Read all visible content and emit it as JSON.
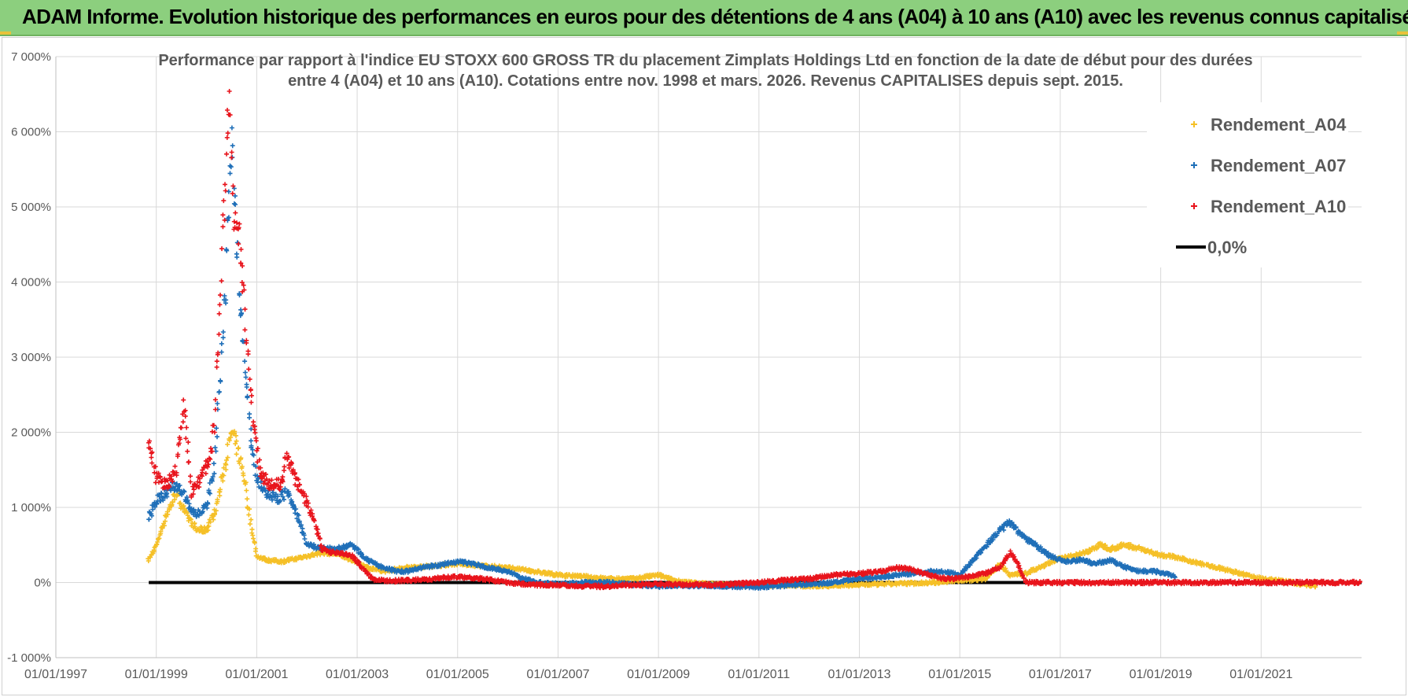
{
  "banner": {
    "title": "ADAM Informe. Evolution historique des performances en euros pour des détentions de 4 ans (A04) à 10 ans (A10) avec les revenus connus capitalisés"
  },
  "chart_data": {
    "type": "scatter",
    "title": "Performance par rapport à l'indice EU STOXX 600 GROSS TR  du placement Zimplats Holdings Ltd en fonction de la date de début pour des durées",
    "subtitle": "entre 4 (A04) et 10 ans (A10). Cotations entre nov. 1998 et mars. 2026. Revenus CAPITALISES depuis sept. 2015.",
    "xlabel": "",
    "ylabel": "",
    "xlim": [
      1997.0,
      2023.0
    ],
    "ylim": [
      -1000,
      7000
    ],
    "grid": true,
    "legend_position": "top-right",
    "x_ticks": [
      {
        "v": 1997,
        "label": "01/01/1997"
      },
      {
        "v": 1999,
        "label": "01/01/1999"
      },
      {
        "v": 2001,
        "label": "01/01/2001"
      },
      {
        "v": 2003,
        "label": "01/01/2003"
      },
      {
        "v": 2005,
        "label": "01/01/2005"
      },
      {
        "v": 2007,
        "label": "01/01/2007"
      },
      {
        "v": 2009,
        "label": "01/01/2009"
      },
      {
        "v": 2011,
        "label": "01/01/2011"
      },
      {
        "v": 2013,
        "label": "01/01/2013"
      },
      {
        "v": 2015,
        "label": "01/01/2015"
      },
      {
        "v": 2017,
        "label": "01/01/2017"
      },
      {
        "v": 2019,
        "label": "01/01/2019"
      },
      {
        "v": 2021,
        "label": "01/01/2021"
      }
    ],
    "y_ticks": [
      {
        "v": 7000,
        "label": "7 000%"
      },
      {
        "v": 6000,
        "label": "6 000%"
      },
      {
        "v": 5000,
        "label": "5 000%"
      },
      {
        "v": 4000,
        "label": "4 000%"
      },
      {
        "v": 3000,
        "label": "3 000%"
      },
      {
        "v": 2000,
        "label": "2 000%"
      },
      {
        "v": 1000,
        "label": "1 000%"
      },
      {
        "v": 0,
        "label": "0%"
      },
      {
        "v": -1000,
        "label": "-1 000%"
      }
    ],
    "series": [
      {
        "name": "Rendement_A04",
        "color": "#f5c027",
        "marker": "plus",
        "points": [
          [
            1998.85,
            300
          ],
          [
            1999.0,
            500
          ],
          [
            1999.2,
            900
          ],
          [
            1999.4,
            1200
          ],
          [
            1999.6,
            900
          ],
          [
            1999.8,
            700
          ],
          [
            2000.0,
            700
          ],
          [
            2000.2,
            1000
          ],
          [
            2000.35,
            1500
          ],
          [
            2000.5,
            2000
          ],
          [
            2000.6,
            1800
          ],
          [
            2000.75,
            1400
          ],
          [
            2000.9,
            700
          ],
          [
            2001.0,
            350
          ],
          [
            2001.2,
            300
          ],
          [
            2001.5,
            280
          ],
          [
            2001.8,
            320
          ],
          [
            2002.0,
            350
          ],
          [
            2002.3,
            400
          ],
          [
            2002.6,
            380
          ],
          [
            2002.9,
            300
          ],
          [
            2003.2,
            200
          ],
          [
            2003.5,
            150
          ],
          [
            2004.0,
            200
          ],
          [
            2004.5,
            220
          ],
          [
            2005.0,
            250
          ],
          [
            2005.5,
            220
          ],
          [
            2006.0,
            200
          ],
          [
            2006.5,
            150
          ],
          [
            2007.0,
            100
          ],
          [
            2007.5,
            80
          ],
          [
            2008.0,
            50
          ],
          [
            2008.5,
            50
          ],
          [
            2009.0,
            100
          ],
          [
            2009.3,
            30
          ],
          [
            2009.6,
            0
          ],
          [
            2010.0,
            -20
          ],
          [
            2010.5,
            -30
          ],
          [
            2011.0,
            -40
          ],
          [
            2011.5,
            -30
          ],
          [
            2012.0,
            -50
          ],
          [
            2012.5,
            -40
          ],
          [
            2013.0,
            -30
          ],
          [
            2013.5,
            -20
          ],
          [
            2014.0,
            -10
          ],
          [
            2014.5,
            0
          ],
          [
            2015.0,
            30
          ],
          [
            2015.5,
            50
          ],
          [
            2015.8,
            250
          ],
          [
            2016.0,
            100
          ],
          [
            2016.3,
            120
          ],
          [
            2016.6,
            200
          ],
          [
            2016.9,
            300
          ],
          [
            2017.2,
            350
          ],
          [
            2017.5,
            400
          ],
          [
            2017.8,
            500
          ],
          [
            2018.0,
            450
          ],
          [
            2018.3,
            500
          ],
          [
            2018.6,
            450
          ],
          [
            2018.9,
            380
          ],
          [
            2019.2,
            350
          ],
          [
            2019.5,
            300
          ],
          [
            2019.8,
            250
          ],
          [
            2020.1,
            200
          ],
          [
            2020.4,
            150
          ],
          [
            2020.7,
            100
          ],
          [
            2021.0,
            50
          ],
          [
            2021.3,
            30
          ],
          [
            2021.6,
            0
          ],
          [
            2021.9,
            -30
          ],
          [
            2022.1,
            -50
          ]
        ]
      },
      {
        "name": "Rendement_A07",
        "color": "#1f6fb8",
        "marker": "plus",
        "points": [
          [
            1998.85,
            850
          ],
          [
            1999.0,
            1100
          ],
          [
            1999.2,
            1200
          ],
          [
            1999.4,
            1300
          ],
          [
            1999.6,
            1100
          ],
          [
            1999.8,
            900
          ],
          [
            2000.0,
            1000
          ],
          [
            2000.15,
            1500
          ],
          [
            2000.3,
            3000
          ],
          [
            2000.4,
            4200
          ],
          [
            2000.5,
            5800
          ],
          [
            2000.6,
            4600
          ],
          [
            2000.7,
            3500
          ],
          [
            2000.8,
            2600
          ],
          [
            2000.9,
            1800
          ],
          [
            2001.0,
            1400
          ],
          [
            2001.2,
            1200
          ],
          [
            2001.4,
            1100
          ],
          [
            2001.6,
            1200
          ],
          [
            2001.8,
            900
          ],
          [
            2002.0,
            500
          ],
          [
            2002.3,
            450
          ],
          [
            2002.6,
            450
          ],
          [
            2002.9,
            500
          ],
          [
            2003.2,
            300
          ],
          [
            2003.5,
            200
          ],
          [
            2003.8,
            150
          ],
          [
            2004.0,
            150
          ],
          [
            2004.3,
            200
          ],
          [
            2004.6,
            230
          ],
          [
            2005.0,
            280
          ],
          [
            2005.3,
            250
          ],
          [
            2005.6,
            200
          ],
          [
            2006.0,
            150
          ],
          [
            2006.3,
            50
          ],
          [
            2006.6,
            0
          ],
          [
            2007.0,
            -20
          ],
          [
            2007.5,
            0
          ],
          [
            2008.0,
            0
          ],
          [
            2008.5,
            -30
          ],
          [
            2009.0,
            -50
          ],
          [
            2009.5,
            -40
          ],
          [
            2010.0,
            -40
          ],
          [
            2010.5,
            -50
          ],
          [
            2011.0,
            -60
          ],
          [
            2011.5,
            -40
          ],
          [
            2012.0,
            -20
          ],
          [
            2012.5,
            0
          ],
          [
            2013.0,
            50
          ],
          [
            2013.5,
            80
          ],
          [
            2014.0,
            120
          ],
          [
            2014.5,
            150
          ],
          [
            2014.8,
            130
          ],
          [
            2015.0,
            100
          ],
          [
            2015.2,
            250
          ],
          [
            2015.4,
            400
          ],
          [
            2015.6,
            550
          ],
          [
            2015.8,
            700
          ],
          [
            2016.0,
            800
          ],
          [
            2016.2,
            650
          ],
          [
            2016.4,
            550
          ],
          [
            2016.6,
            450
          ],
          [
            2016.8,
            350
          ],
          [
            2017.1,
            280
          ],
          [
            2017.4,
            300
          ],
          [
            2017.7,
            250
          ],
          [
            2018.0,
            300
          ],
          [
            2018.3,
            200
          ],
          [
            2018.6,
            150
          ],
          [
            2018.9,
            150
          ],
          [
            2019.1,
            120
          ],
          [
            2019.3,
            80
          ]
        ]
      },
      {
        "name": "Rendement_A10",
        "color": "#e8141c",
        "marker": "plus",
        "points": [
          [
            1998.85,
            1900
          ],
          [
            1999.0,
            1400
          ],
          [
            1999.2,
            1300
          ],
          [
            1999.4,
            1500
          ],
          [
            1999.55,
            2400
          ],
          [
            1999.7,
            1200
          ],
          [
            1999.9,
            1400
          ],
          [
            2000.05,
            1600
          ],
          [
            2000.15,
            2100
          ],
          [
            2000.25,
            3500
          ],
          [
            2000.35,
            5000
          ],
          [
            2000.45,
            6300
          ],
          [
            2000.55,
            4800
          ],
          [
            2000.65,
            4600
          ],
          [
            2000.75,
            3800
          ],
          [
            2000.85,
            2800
          ],
          [
            2000.95,
            2000
          ],
          [
            2001.1,
            1400
          ],
          [
            2001.3,
            1300
          ],
          [
            2001.5,
            1300
          ],
          [
            2001.6,
            1700
          ],
          [
            2001.75,
            1400
          ],
          [
            2001.9,
            1200
          ],
          [
            2002.1,
            900
          ],
          [
            2002.3,
            450
          ],
          [
            2002.5,
            400
          ],
          [
            2002.7,
            380
          ],
          [
            2002.9,
            350
          ],
          [
            2003.1,
            200
          ],
          [
            2003.3,
            50
          ],
          [
            2003.6,
            20
          ],
          [
            2004.0,
            30
          ],
          [
            2004.5,
            50
          ],
          [
            2005.0,
            80
          ],
          [
            2005.5,
            50
          ],
          [
            2006.0,
            0
          ],
          [
            2006.5,
            -30
          ],
          [
            2007.0,
            -30
          ],
          [
            2007.5,
            -50
          ],
          [
            2008.0,
            -50
          ],
          [
            2008.5,
            -30
          ],
          [
            2009.0,
            -20
          ],
          [
            2009.5,
            -30
          ],
          [
            2010.0,
            -30
          ],
          [
            2010.5,
            -20
          ],
          [
            2011.0,
            0
          ],
          [
            2011.5,
            30
          ],
          [
            2012.0,
            50
          ],
          [
            2012.5,
            100
          ],
          [
            2013.0,
            120
          ],
          [
            2013.5,
            150
          ],
          [
            2013.7,
            200
          ],
          [
            2014.0,
            180
          ],
          [
            2014.3,
            120
          ],
          [
            2014.6,
            60
          ],
          [
            2014.9,
            50
          ],
          [
            2015.2,
            80
          ],
          [
            2015.5,
            120
          ],
          [
            2015.8,
            200
          ],
          [
            2016.0,
            400
          ],
          [
            2016.15,
            250
          ],
          [
            2016.3,
            0
          ],
          [
            2016.8,
            0
          ],
          [
            2017.3,
            0
          ],
          [
            2017.8,
            0
          ],
          [
            2018.3,
            0
          ],
          [
            2018.8,
            0
          ],
          [
            2019.3,
            0
          ],
          [
            2019.8,
            0
          ],
          [
            2020.3,
            0
          ],
          [
            2020.8,
            0
          ],
          [
            2021.3,
            0
          ],
          [
            2021.8,
            0
          ],
          [
            2022.3,
            0
          ],
          [
            2022.8,
            0
          ],
          [
            2023.0,
            0
          ]
        ]
      },
      {
        "name": "0,0%",
        "color": "#000000",
        "marker": "line",
        "points": [
          [
            1998.85,
            0
          ],
          [
            2023.0,
            0
          ]
        ]
      }
    ]
  }
}
